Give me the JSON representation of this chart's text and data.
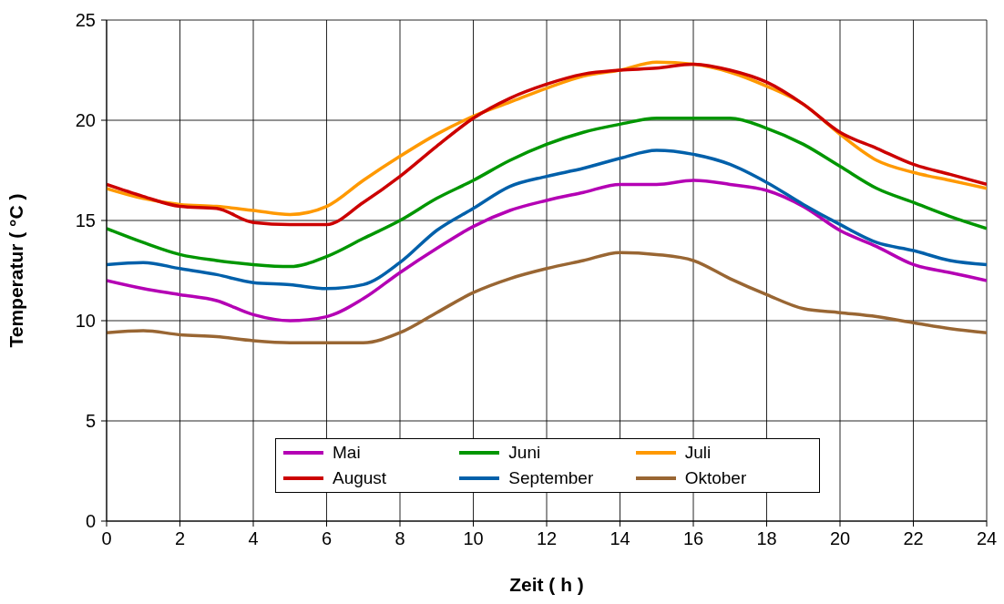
{
  "chart_data": {
    "type": "line",
    "xlabel": "Zeit  ( h )",
    "ylabel": "Temperatur  ( °C )",
    "x": [
      0,
      1,
      2,
      3,
      4,
      5,
      6,
      7,
      8,
      9,
      10,
      11,
      12,
      13,
      14,
      15,
      16,
      17,
      18,
      19,
      20,
      21,
      22,
      23,
      24
    ],
    "series": [
      {
        "name": "Mai",
        "color": "#b400b4",
        "values": [
          12.0,
          11.6,
          11.3,
          11.0,
          10.3,
          10.0,
          10.2,
          11.1,
          12.4,
          13.6,
          14.7,
          15.5,
          16.0,
          16.4,
          16.8,
          16.8,
          17.0,
          16.8,
          16.5,
          15.7,
          14.5,
          13.7,
          12.8,
          12.4,
          12.0
        ]
      },
      {
        "name": "Juni",
        "color": "#009600",
        "values": [
          14.6,
          13.9,
          13.3,
          13.0,
          12.8,
          12.7,
          13.2,
          14.1,
          15.0,
          16.1,
          17.0,
          18.0,
          18.8,
          19.4,
          19.8,
          20.1,
          20.1,
          20.1,
          19.6,
          18.8,
          17.7,
          16.6,
          15.9,
          15.2,
          14.6
        ]
      },
      {
        "name": "Juli",
        "color": "#ff9900",
        "values": [
          16.6,
          16.1,
          15.8,
          15.7,
          15.5,
          15.3,
          15.7,
          17.0,
          18.2,
          19.3,
          20.2,
          20.9,
          21.6,
          22.2,
          22.5,
          22.9,
          22.8,
          22.4,
          21.7,
          20.8,
          19.3,
          18.0,
          17.4,
          17.0,
          16.6
        ]
      },
      {
        "name": "August",
        "color": "#cc0000",
        "values": [
          16.8,
          16.2,
          15.7,
          15.6,
          14.9,
          14.8,
          14.8,
          15.9,
          17.2,
          18.7,
          20.1,
          21.1,
          21.8,
          22.3,
          22.5,
          22.6,
          22.8,
          22.5,
          21.9,
          20.8,
          19.4,
          18.6,
          17.8,
          17.3,
          16.8
        ]
      },
      {
        "name": "September",
        "color": "#0060aa",
        "values": [
          12.8,
          12.9,
          12.6,
          12.3,
          11.9,
          11.8,
          11.6,
          11.8,
          12.9,
          14.5,
          15.6,
          16.7,
          17.2,
          17.6,
          18.1,
          18.5,
          18.3,
          17.8,
          16.9,
          15.8,
          14.8,
          13.9,
          13.5,
          13.0,
          12.8
        ]
      },
      {
        "name": "Oktober",
        "color": "#996633",
        "values": [
          9.4,
          9.5,
          9.3,
          9.2,
          9.0,
          8.9,
          8.9,
          8.9,
          9.4,
          10.4,
          11.4,
          12.1,
          12.6,
          13.0,
          13.4,
          13.3,
          13.0,
          12.1,
          11.3,
          10.6,
          10.4,
          10.2,
          9.9,
          9.6,
          9.4
        ]
      }
    ],
    "xlim": [
      0,
      24
    ],
    "xticks": [
      0,
      2,
      4,
      6,
      8,
      10,
      12,
      14,
      16,
      18,
      20,
      22,
      24
    ],
    "ylim": [
      0,
      25
    ],
    "yticks": [
      0,
      5,
      10,
      15,
      20,
      25
    ],
    "grid": true,
    "legend": "bottom",
    "marker": "none",
    "line_style": "solid"
  }
}
